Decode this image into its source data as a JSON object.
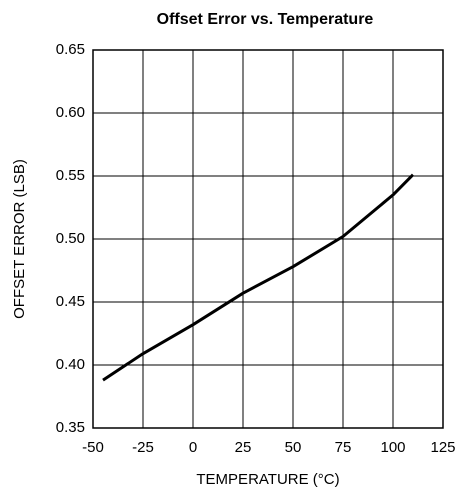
{
  "chart_data": {
    "type": "line",
    "title": "Offset Error vs. Temperature",
    "x_label": "TEMPERATURE (°C)",
    "y_label": "OFFSET ERROR (LSB)",
    "x": [
      -45,
      -25,
      0,
      25,
      50,
      75,
      100,
      110
    ],
    "series": [
      {
        "color": "#000000",
        "values": [
          0.388,
          0.409,
          0.432,
          0.457,
          0.478,
          0.502,
          0.535,
          0.551
        ]
      }
    ],
    "xlim": [
      -50,
      125
    ],
    "xticks": [
      -50,
      -25,
      0,
      25,
      50,
      75,
      100,
      125
    ],
    "ylim": [
      0.35,
      0.65
    ],
    "yticks": [
      0.35,
      {
        "value": 0.4,
        "label": "0.40"
      },
      0.45,
      {
        "value": 0.5,
        "label": "0.50"
      },
      0.55,
      {
        "value": 0.6,
        "label": "0.60"
      },
      0.65
    ],
    "grid": true
  }
}
